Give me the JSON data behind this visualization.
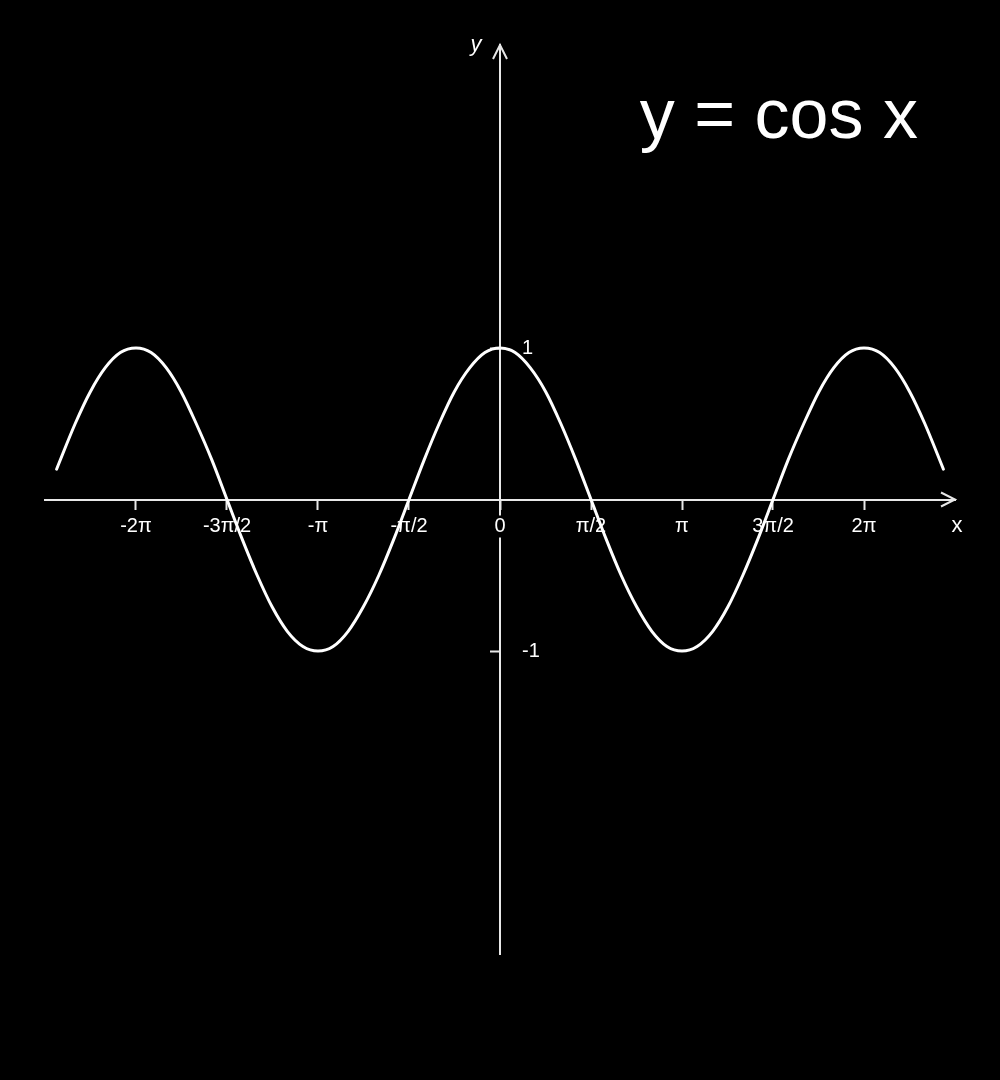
{
  "chart_data": {
    "type": "line",
    "title": "y = cos x",
    "xlabel": "x",
    "ylabel": "y",
    "x": [
      -7.65,
      -7.33,
      -7.07,
      -6.81,
      -6.55,
      -6.28,
      -6.02,
      -5.76,
      -5.5,
      -5.24,
      -4.97,
      -4.71,
      -4.45,
      -4.19,
      -3.93,
      -3.67,
      -3.4,
      -3.14,
      -2.88,
      -2.62,
      -2.36,
      -2.09,
      -1.83,
      -1.57,
      -1.31,
      -1.05,
      -0.79,
      -0.52,
      -0.26,
      0,
      0.26,
      0.52,
      0.79,
      1.05,
      1.31,
      1.57,
      1.83,
      2.09,
      2.36,
      2.62,
      2.88,
      3.14,
      3.4,
      3.67,
      3.93,
      4.19,
      4.45,
      4.71,
      4.97,
      5.24,
      5.5,
      5.76,
      6.02,
      6.28,
      6.55,
      6.81,
      7.07,
      7.33,
      7.65
    ],
    "series": [
      {
        "color": "#ffffff",
        "values": [
          0.2,
          0.5,
          0.71,
          0.87,
          0.97,
          1,
          0.97,
          0.87,
          0.71,
          0.5,
          0.26,
          0,
          -0.26,
          -0.5,
          -0.71,
          -0.87,
          -0.97,
          -1,
          -0.97,
          -0.87,
          -0.71,
          -0.5,
          -0.26,
          0,
          0.26,
          0.5,
          0.71,
          0.87,
          0.97,
          1,
          0.97,
          0.87,
          0.71,
          0.5,
          0.26,
          0,
          -0.26,
          -0.5,
          -0.71,
          -0.87,
          -0.97,
          -1,
          -0.97,
          -0.87,
          -0.71,
          -0.5,
          -0.26,
          0,
          0.26,
          0.5,
          0.71,
          0.87,
          0.97,
          1,
          0.97,
          0.87,
          0.71,
          0.5,
          0.2
        ]
      }
    ],
    "xlim": [
      -7.85,
      7.85
    ],
    "ylim": [
      -3,
      3
    ],
    "xticks": [
      {
        "value": -6.28,
        "label": "-2π"
      },
      {
        "value": -4.71,
        "label": "-3π/2"
      },
      {
        "value": -3.14,
        "label": "-π"
      },
      {
        "value": -1.57,
        "label": "-π/2"
      },
      0,
      {
        "value": 1.57,
        "label": "π/2"
      },
      {
        "value": 3.14,
        "label": "π"
      },
      {
        "value": 4.71,
        "label": "3π/2"
      },
      {
        "value": 6.28,
        "label": "2π"
      }
    ],
    "yticks": [
      -1,
      1
    ]
  }
}
